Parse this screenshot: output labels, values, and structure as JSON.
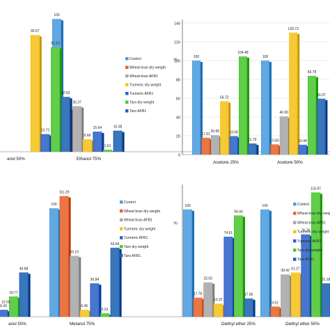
{
  "legend_labels": [
    "Control",
    "Wheat bran dry weight",
    "Wheat bran AFB1",
    "Turmeric dry weight",
    "Turmeric AFB1",
    "Taro dry weight",
    "Taro AFB1"
  ],
  "colors": [
    "#4d9de0",
    "#e8642c",
    "#a8a8a8",
    "#f5c21b",
    "#2f62c8",
    "#4cc733",
    "#1f63b3"
  ],
  "chart_data": [
    {
      "type": "bar",
      "panel": "top-left",
      "categories": [
        "anol 50%",
        "Ethanol 75%"
      ],
      "series": [
        {
          "name": "Control",
          "values": [
            null,
            103
          ]
        },
        {
          "name": "Wheat bran dry weight",
          "values": [
            null,
            33.57
          ]
        },
        {
          "name": "Wheat bran AFB1",
          "values": [
            null,
            35.37
          ]
        },
        {
          "name": "Turmeric dry weight",
          "values": [
            90.57,
            9.68
          ]
        },
        {
          "name": "Turmeric AFB1",
          "values": [
            13.72,
            15.64
          ]
        },
        {
          "name": "Taro dry weight",
          "values": [
            81.13,
            1.61
          ]
        },
        {
          "name": "Taro AFB1",
          "values": [
            42.53,
            16.38
          ]
        }
      ],
      "value_labels": [
        [
          "",
          "103"
        ],
        [
          "",
          "33.57"
        ],
        [
          "",
          "35.37"
        ],
        [
          "90.57",
          "9.68"
        ],
        [
          "13.72",
          "15.64"
        ],
        [
          "81.13",
          "1.61"
        ],
        [
          "42.53",
          "16.38"
        ]
      ],
      "ylim": [
        0,
        115
      ],
      "grid": false
    },
    {
      "type": "bar",
      "panel": "top-right",
      "categories": [
        "Acetone 25%",
        "Acetone 50%"
      ],
      "series": [
        {
          "name": "Control",
          "values": [
            100,
            100
          ]
        },
        {
          "name": "Wheat bran dry weight",
          "values": [
            17.91,
            10.83
          ]
        },
        {
          "name": "Wheat bran AFB1",
          "values": [
            20.65,
            40.6
          ]
        },
        {
          "name": "Turmeric dry weight",
          "values": [
            56.72,
            129.73
          ]
        },
        {
          "name": "Turmeric AFB1",
          "values": [
            19.58,
            10.44
          ]
        },
        {
          "name": "Taro dry weight",
          "values": [
            104.48,
            83.78
          ]
        },
        {
          "name": "Taro AFB1",
          "values": [
            11.79,
            59.37
          ]
        }
      ],
      "value_labels": [
        [
          "100",
          "100"
        ],
        [
          "17.91",
          "10.83"
        ],
        [
          "20.65",
          "40.60"
        ],
        [
          "56.72",
          "129.73"
        ],
        [
          "19.58",
          "10.44"
        ],
        [
          "104.48",
          "83.78"
        ],
        [
          "11.79",
          "59.37"
        ]
      ],
      "yticks": [
        "0",
        "20",
        "40",
        "60",
        "80",
        "100",
        "120",
        "140"
      ],
      "ylabel": "%",
      "ylim": [
        0,
        140
      ],
      "grid": true,
      "legend": "left"
    },
    {
      "type": "bar",
      "panel": "bottom-left",
      "categories": [
        "anol 50%",
        "Metanol 75%"
      ],
      "series": [
        {
          "name": "Control",
          "values": [
            null,
            100
          ]
        },
        {
          "name": "Wheat bran dry weight",
          "values": [
            null,
            111.29
          ]
        },
        {
          "name": "Wheat bran AFB1",
          "values": [
            null,
            56.19
          ]
        },
        {
          "name": "Turmeric dry weight",
          "values": [
            null,
            6.45
          ]
        },
        {
          "name": "Turmeric AFB1",
          "values": [
            6.43,
            30.84
          ]
        },
        {
          "name": "Taro dry weight",
          "values": [
            18.77,
            3.23
          ]
        },
        {
          "name": "Taro AFB1",
          "values": [
            40.88,
            63.64
          ]
        }
      ],
      "value_labels": [
        [
          "",
          "100"
        ],
        [
          "",
          "111.29"
        ],
        [
          "",
          "56.19"
        ],
        [
          "",
          "6.45"
        ],
        [
          "6.43",
          "30.84"
        ],
        [
          "18.77",
          "3.23"
        ],
        [
          "40.88",
          "63.64"
        ]
      ],
      "left_partial_labels": [
        "10.59"
      ],
      "ylim": [
        0,
        120
      ],
      "grid": false
    },
    {
      "type": "bar",
      "panel": "bottom-right",
      "categories": [
        "Diethyl ether 25%",
        "Diethyl ether 50%"
      ],
      "series": [
        {
          "name": "Control",
          "values": [
            100,
            100
          ]
        },
        {
          "name": "Wheat bran dry weight",
          "values": [
            17.78,
            9.52
          ]
        },
        {
          "name": "Wheat bran AFB1",
          "values": [
            32.03,
            39.42
          ]
        },
        {
          "name": "Turmeric dry weight",
          "values": [
            12.22,
            41.27
          ]
        },
        {
          "name": "Turmeric AFB1",
          "values": [
            74.61,
            76.76
          ]
        },
        {
          "name": "Taro dry weight",
          "values": [
            94.44,
            115.87
          ]
        },
        {
          "name": "Taro AFB1",
          "values": [
            17.06,
            31.18
          ]
        }
      ],
      "value_labels": [
        [
          "100",
          "100"
        ],
        [
          "17.78",
          "9.52"
        ],
        [
          "32.03",
          "39.42"
        ],
        [
          "12.22",
          "41.27"
        ],
        [
          "74.61",
          "76.76"
        ],
        [
          "94.44",
          "115.87"
        ],
        [
          "17.06",
          "31.18"
        ]
      ],
      "ylabel": "%",
      "ylim": [
        0,
        120
      ],
      "grid": false,
      "legend": "left"
    }
  ]
}
